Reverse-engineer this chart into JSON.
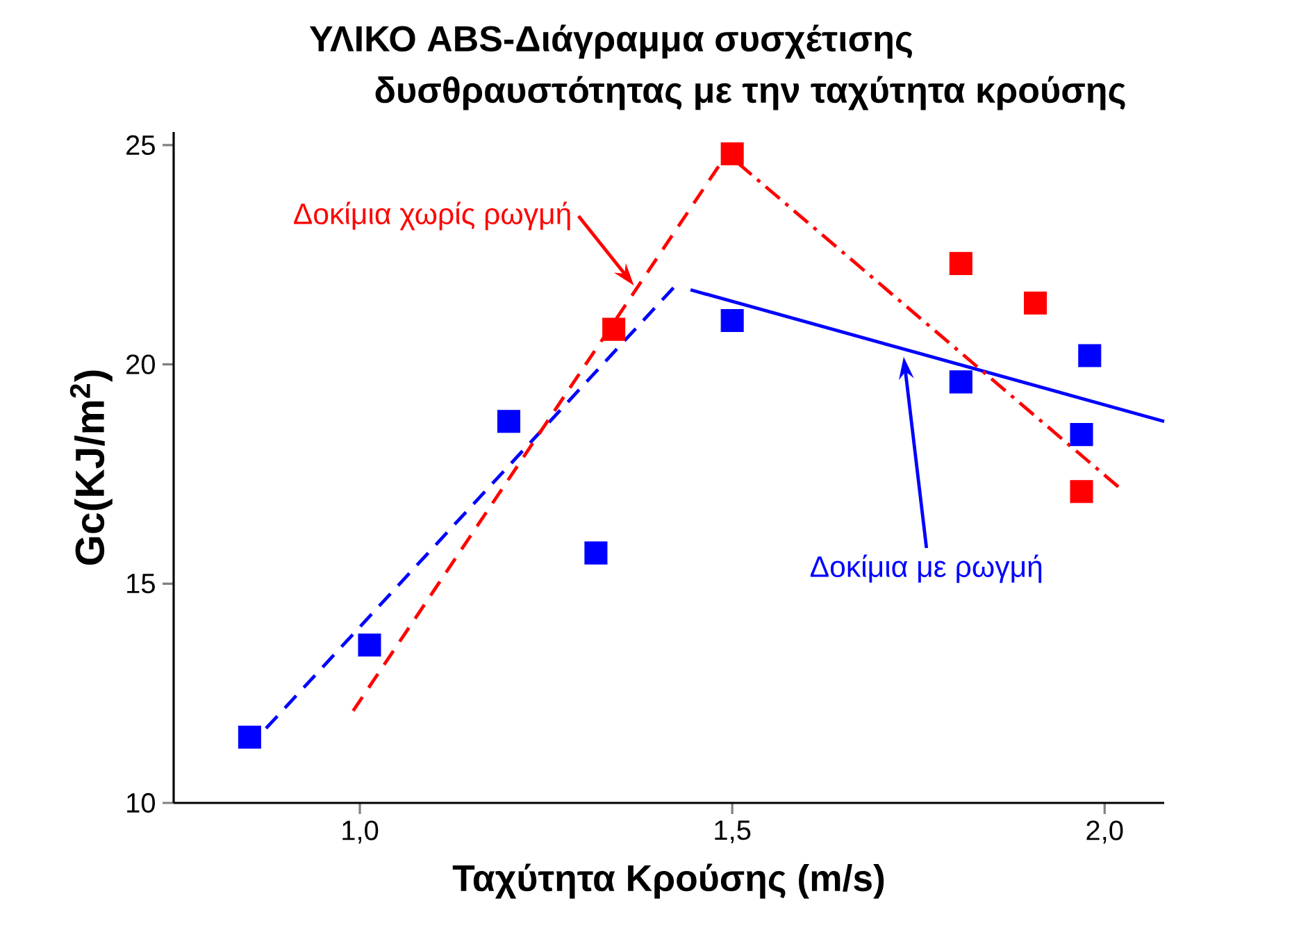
{
  "chart_data": {
    "type": "scatter",
    "title": "ΥΛΙΚΟ ABS-Διάγραμμα συσχέτισης",
    "subtitle": "δυσθραυστότητας   με την ταχύτητα κρούσης",
    "xlabel": "Ταχύτητα Κρούσης (m/s)",
    "ylabel": "Gc(KJ/m$^{2}$)",
    "xlim": [
      0.75,
      2.08
    ],
    "ylim": [
      10,
      25.3
    ],
    "xticks": [
      {
        "value": 1.0,
        "label": "1,0"
      },
      {
        "value": 1.5,
        "label": "1,5"
      },
      {
        "value": 2.0,
        "label": "2,0"
      }
    ],
    "yticks": [
      10,
      15,
      20,
      25
    ],
    "marker": "square",
    "series": [
      {
        "color": "#0000ff",
        "x": [
          0.852,
          1.013,
          1.2,
          1.317,
          1.5,
          1.807,
          1.98,
          1.969
        ],
        "values": [
          11.5,
          13.6,
          18.7,
          15.7,
          21.0,
          19.6,
          20.2,
          18.4
        ]
      },
      {
        "color": "#ff0000",
        "x": [
          1.341,
          1.5,
          1.807,
          1.907,
          1.969
        ],
        "values": [
          20.8,
          24.8,
          22.3,
          21.4,
          17.1
        ]
      },
      {
        "type": "line",
        "color": "#0000ff",
        "line_style": "dashed",
        "marker": "none",
        "x": [
          0.874,
          1.424
        ],
        "values": [
          11.7,
          21.8
        ]
      },
      {
        "type": "line",
        "color": "#0000ff",
        "line_style": "solid",
        "marker": "none",
        "x": [
          1.444,
          2.08
        ],
        "values": [
          21.7,
          18.7
        ]
      },
      {
        "type": "line",
        "color": "#ff0000",
        "line_style": "dashed",
        "marker": "none",
        "x": [
          0.991,
          1.485
        ],
        "values": [
          12.1,
          24.6
        ]
      },
      {
        "type": "line",
        "color": "#ff0000",
        "line_style": "dashdot",
        "marker": "none",
        "x": [
          1.507,
          2.019
        ],
        "values": [
          24.6,
          17.2
        ]
      }
    ],
    "annotations": [
      {
        "text": "Δοκίμια χωρίς ρωγμή",
        "x": 1.368,
        "y": 21.8
      },
      "Δοκίμια με ρωγμή"
    ]
  }
}
